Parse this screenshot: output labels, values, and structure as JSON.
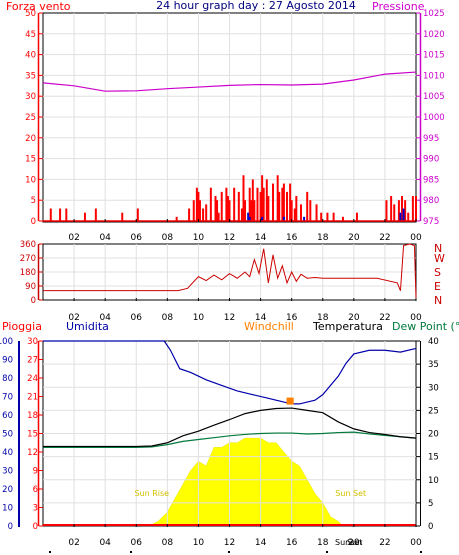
{
  "title": "24 hour graph day : 27 Agosto 2014",
  "colors": {
    "wind": "#ff0000",
    "pressure": "#cc00cc",
    "direction": "#cc0000",
    "rain": "#ff0000",
    "humidity": "#0000aa",
    "windchill": "#ff8000",
    "temperature": "#000000",
    "dewpoint": "#007a3d",
    "solar": "#ffff00",
    "frame": "#000000"
  },
  "time_ticks": [
    "02",
    "04",
    "06",
    "08",
    "10",
    "12",
    "14",
    "16",
    "18",
    "20",
    "22",
    "00"
  ],
  "chart_data": [
    {
      "type": "bar",
      "name": "wind-pressure",
      "left_label": "Forza vento",
      "right_label": "Pressione",
      "left_ticks": [
        "50",
        "45",
        "40",
        "35",
        "30",
        "25",
        "20",
        "15",
        "10",
        "5",
        "0"
      ],
      "right_ticks": [
        "1025",
        "1020",
        "1015",
        "1010",
        "1005",
        "1000",
        "995",
        "990",
        "985",
        "980",
        "975"
      ],
      "ylim_left": [
        0,
        50
      ],
      "ylim_right": [
        975,
        1025
      ],
      "pressure": {
        "x": [
          0,
          2,
          4,
          6,
          8,
          10,
          12,
          14,
          16,
          18,
          20,
          22,
          24
        ],
        "values": [
          1008.2,
          1007.5,
          1006.2,
          1006.3,
          1006.8,
          1007.2,
          1007.6,
          1007.8,
          1007.7,
          1007.9,
          1008.9,
          1010.3,
          1010.8
        ]
      },
      "wind_gust": {
        "x": [
          0.5,
          1.1,
          1.5,
          2.7,
          3.4,
          5.1,
          6.1,
          8.6,
          9.4,
          9.7,
          9.9,
          10.0,
          10.1,
          10.3,
          10.5,
          10.8,
          11.1,
          11.2,
          11.3,
          11.5,
          11.8,
          11.9,
          12.0,
          12.3,
          12.6,
          12.8,
          12.9,
          13.0,
          13.3,
          13.4,
          13.5,
          13.6,
          13.8,
          14.0,
          14.1,
          14.2,
          14.4,
          14.5,
          14.8,
          15.1,
          15.2,
          15.4,
          15.5,
          15.7,
          15.9,
          16.0,
          16.2,
          16.3,
          16.6,
          17.0,
          17.2,
          17.6,
          17.9,
          18.3,
          18.7,
          19.3,
          20.2,
          22.1,
          22.4,
          22.6,
          22.9,
          23.1,
          23.3,
          23.5,
          23.8,
          24.0
        ],
        "values": [
          3,
          3,
          3,
          2,
          3,
          2,
          3,
          1,
          3,
          5,
          8,
          7,
          5,
          3,
          4,
          8,
          6,
          5,
          2,
          7,
          8,
          6,
          5,
          8,
          7,
          3,
          11,
          5,
          8,
          5,
          10,
          5,
          8,
          7,
          11,
          8,
          10,
          6,
          9,
          11,
          7,
          8,
          9,
          7,
          9,
          5,
          3,
          6,
          4,
          7,
          5,
          4,
          2,
          2,
          2,
          1,
          2,
          5,
          6,
          4,
          5,
          6,
          5,
          2,
          6,
          6
        ]
      },
      "wind_avg": {
        "x": [
          13.2,
          13.3,
          14.1,
          15.5,
          16.8,
          23.0,
          23.2
        ],
        "values": [
          2,
          1,
          1,
          1,
          1,
          2,
          3
        ]
      }
    },
    {
      "type": "line",
      "name": "wind-direction",
      "left_ticks": [
        "360",
        "270",
        "180",
        "90",
        "0"
      ],
      "right_ticks": [
        "N",
        "W",
        "S",
        "E",
        "N"
      ],
      "ylim": [
        0,
        360
      ],
      "x": [
        0,
        3,
        6,
        8.7,
        9.3,
        10.0,
        10.5,
        11.0,
        11.5,
        12.0,
        12.5,
        13.0,
        13.3,
        13.6,
        13.9,
        14.2,
        14.5,
        14.8,
        15.1,
        15.4,
        15.7,
        16.0,
        16.3,
        16.6,
        17.0,
        17.5,
        18.0,
        20.0,
        21.5,
        22.8,
        23.0,
        23.2,
        23.6,
        23.9,
        24.0
      ],
      "values": [
        60,
        60,
        60,
        60,
        75,
        150,
        125,
        160,
        130,
        170,
        140,
        180,
        150,
        260,
        170,
        330,
        110,
        290,
        140,
        220,
        110,
        180,
        120,
        165,
        140,
        145,
        140,
        140,
        140,
        110,
        60,
        350,
        360,
        350,
        10
      ]
    },
    {
      "type": "line",
      "name": "rain-humidity-temperature",
      "left_labels": [
        "Pioggia",
        "Umidita"
      ],
      "right_labels": [
        "Windchill",
        "Temperatura",
        "Dew Point (°C"
      ],
      "humidity_ticks": [
        "100",
        "90",
        "80",
        "70",
        "60",
        "50",
        "40",
        "30",
        "20",
        "10",
        "0"
      ],
      "rain_ticks": [
        "30",
        "27",
        "24",
        "21",
        "18",
        "15",
        "12",
        "9",
        "6",
        "3",
        "0"
      ],
      "temp_ticks": [
        "40",
        "35",
        "30",
        "25",
        "20",
        "15",
        "10",
        "5",
        "0"
      ],
      "ylim_temp": [
        0,
        40
      ],
      "ylim_rain": [
        0,
        30
      ],
      "ylim_humidity": [
        0,
        100
      ],
      "humidity": {
        "x": [
          0,
          2,
          4,
          6,
          7.8,
          8.2,
          8.8,
          9.5,
          10.5,
          11.5,
          12.5,
          13.5,
          14.5,
          15.5,
          16.0,
          16.5,
          17.0,
          17.5,
          18.0,
          19.0,
          19.5,
          20.0,
          21.0,
          22.0,
          23.0,
          24.0
        ],
        "values": [
          100,
          100,
          100,
          100,
          100,
          95,
          85,
          83,
          79,
          76,
          73,
          71,
          69,
          67,
          66,
          66,
          67,
          68,
          71,
          81,
          88,
          93,
          95,
          95,
          94,
          96
        ]
      },
      "temperature": {
        "x": [
          0,
          2,
          4,
          6,
          7,
          8,
          9,
          10,
          11,
          12,
          13,
          14,
          15,
          16,
          17,
          18,
          19,
          20,
          21,
          22,
          23,
          24
        ],
        "values": [
          17.2,
          17.2,
          17.2,
          17.2,
          17.3,
          18.0,
          19.5,
          20.5,
          21.8,
          23.0,
          24.3,
          25.0,
          25.4,
          25.5,
          25.0,
          24.5,
          22.5,
          21.0,
          20.2,
          19.8,
          19.3,
          19.0
        ]
      },
      "dewpoint": {
        "x": [
          0,
          2,
          4,
          6,
          7,
          8,
          9,
          10,
          11,
          12,
          13,
          14,
          15,
          16,
          17,
          18,
          19,
          20,
          21,
          22,
          23,
          24
        ],
        "values": [
          17.0,
          17.0,
          17.0,
          17.0,
          17.1,
          17.6,
          18.3,
          18.7,
          19.1,
          19.5,
          19.8,
          20.0,
          20.1,
          20.1,
          19.9,
          20.0,
          20.2,
          20.3,
          19.9,
          19.6,
          19.3,
          19.0
        ]
      },
      "windchill": {
        "x": [
          15.8,
          16.0
        ],
        "values": [
          26.9,
          26.9
        ]
      },
      "solar": {
        "x": [
          6.8,
          7.4,
          8.0,
          8.5,
          9.0,
          9.5,
          10.0,
          10.5,
          11.0,
          11.5,
          12.0,
          12.5,
          13.0,
          13.5,
          14.0,
          14.5,
          15.0,
          15.5,
          16.0,
          16.5,
          17.0,
          17.5,
          18.0,
          18.5,
          19.0,
          19.3
        ],
        "values": [
          0,
          1,
          3,
          6,
          9,
          12,
          14,
          13,
          17,
          17,
          18,
          18,
          19,
          19,
          19,
          18,
          18,
          16,
          14,
          13,
          10,
          7,
          5,
          2,
          1,
          0
        ]
      },
      "annotations": [
        {
          "text": "Sun Rise",
          "x": 7.0,
          "y": 6.5
        },
        {
          "text": "Sun Set",
          "x": 19.8,
          "y": 6.5
        }
      ],
      "footer_labels": [
        "Sunset",
        "Sun"
      ]
    }
  ]
}
